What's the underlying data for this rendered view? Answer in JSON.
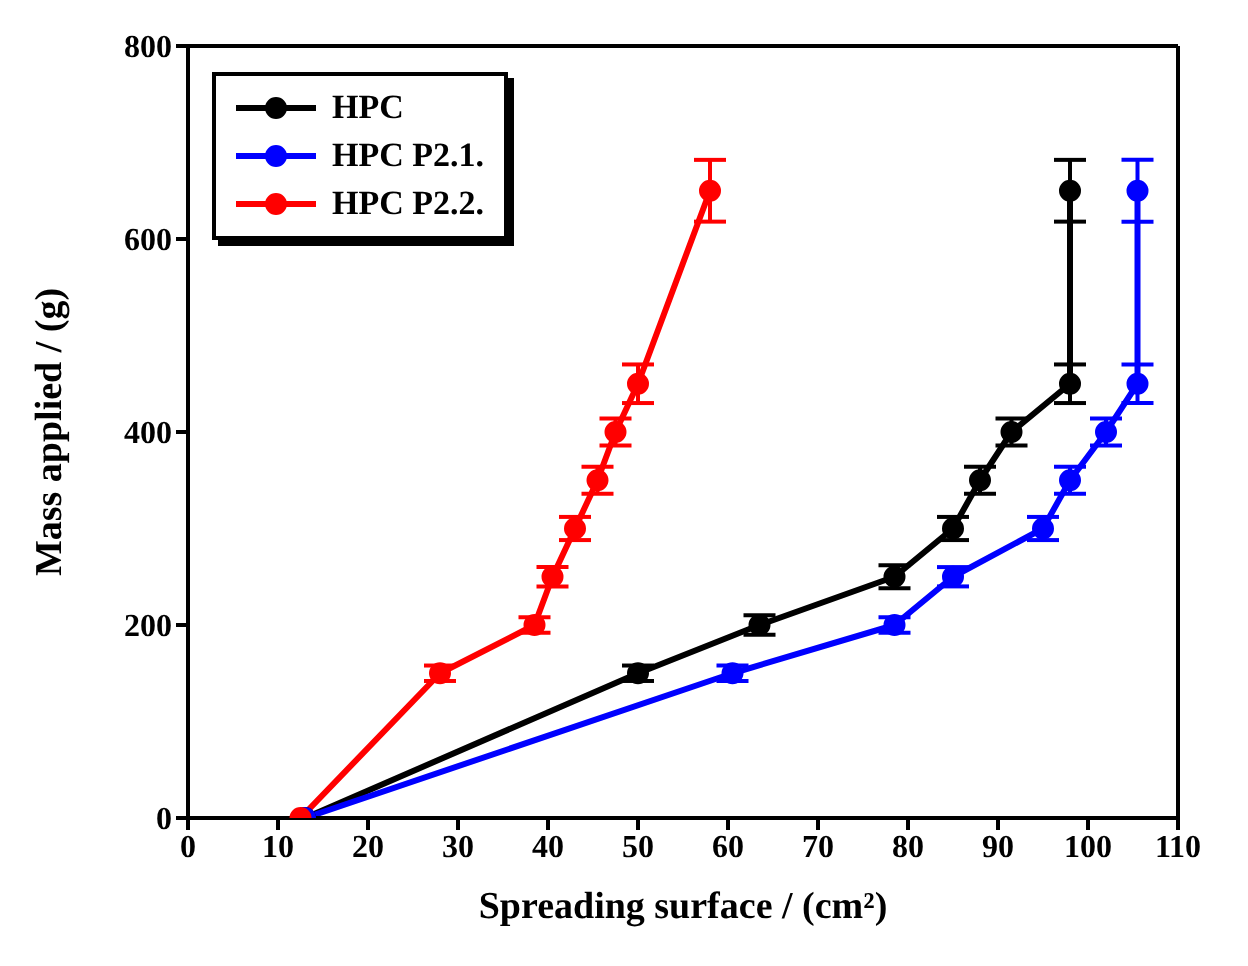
{
  "chart_data": {
    "type": "line",
    "xlabel": "Spreading surface / (cm²)",
    "ylabel": "Mass applied / (g)",
    "xlim": [
      0,
      110
    ],
    "xticks": [
      0,
      10,
      20,
      30,
      40,
      50,
      60,
      70,
      80,
      90,
      100,
      110
    ],
    "ylim": [
      0,
      800
    ],
    "yticks": [
      0,
      200,
      400,
      600,
      800
    ],
    "legend": "top left",
    "marker": "circle",
    "line_style": "solid",
    "series": [
      {
        "name": "HPC",
        "color": "#000000",
        "x": [
          13,
          50,
          63.5,
          78.5,
          85,
          88,
          91.5,
          98,
          98
        ],
        "values": [
          0,
          150,
          200,
          250,
          300,
          350,
          400,
          450,
          650
        ],
        "errors": [
          null,
          8,
          10,
          12,
          12,
          14,
          14,
          20,
          32
        ]
      },
      {
        "name": "HPC P2.1.",
        "color": "#0000ff",
        "x": [
          13,
          60.5,
          78.5,
          85,
          95,
          98,
          102,
          105.5,
          105.5
        ],
        "values": [
          0,
          150,
          200,
          250,
          300,
          350,
          400,
          450,
          650
        ],
        "errors": [
          null,
          8,
          8,
          10,
          12,
          14,
          14,
          20,
          32
        ]
      },
      {
        "name": "HPC P2.2.",
        "color": "#ff0000",
        "x": [
          12.5,
          28,
          38.5,
          40.5,
          43,
          45.5,
          47.5,
          50,
          58
        ],
        "values": [
          0,
          150,
          200,
          250,
          300,
          350,
          400,
          450,
          650
        ],
        "errors": [
          null,
          8,
          8,
          10,
          12,
          14,
          14,
          20,
          32
        ]
      }
    ]
  }
}
